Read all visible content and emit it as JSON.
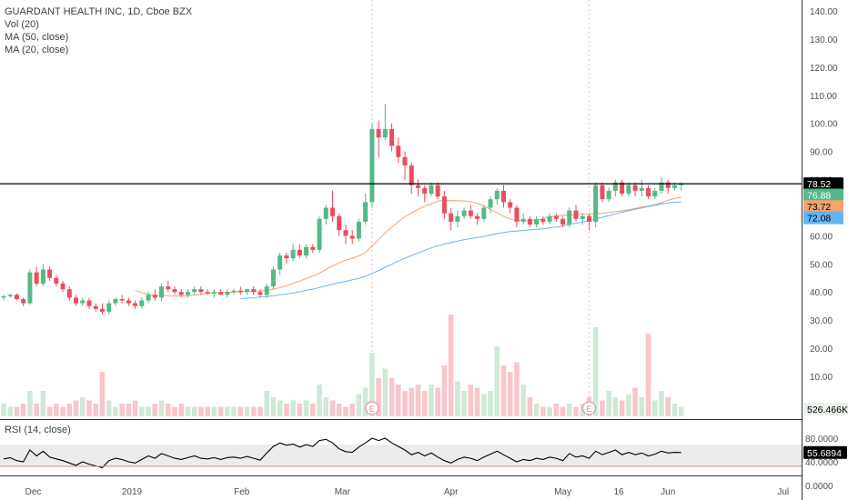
{
  "header": {
    "title": "GUARDANT HEALTH INC, 1D, Cboe BZX",
    "indicators": [
      "Vol (20)",
      "MA (50, close)",
      "MA (20, close)"
    ]
  },
  "rsi_panel": {
    "label": "RSI (14, close)",
    "value_tag": "55.6894",
    "ticks": [
      "80.0000",
      "40.0000",
      "0.0000"
    ]
  },
  "price_tags": {
    "last": "78.52",
    "ma20": "76.88",
    "ma50": "73.72",
    "ma_blue": "72.08",
    "volume": "526.466K"
  },
  "y_ticks": [
    "140.00",
    "130.00",
    "120.00",
    "110.00",
    "100.00",
    "90.00",
    "80.00",
    "70.00",
    "60.00",
    "50.00",
    "40.00",
    "30.00",
    "20.00",
    "10.00"
  ],
  "x_ticks": [
    "Dec",
    "2019",
    "Feb",
    "Mar",
    "Apr",
    "May",
    "16",
    "Jun",
    "Jul"
  ],
  "earnings_marker": "E",
  "colors": {
    "up": "#53b987",
    "down": "#eb4d5c",
    "vol_up": "#cfe9d7",
    "vol_down": "#f8c6cb",
    "ma_orange": "#f5a26f",
    "ma_blue": "#64b5f6",
    "tag_green": "#53b987",
    "tag_orange": "#f5a26f",
    "tag_blue": "#64b5f6"
  },
  "chart_data": {
    "type": "candlestick",
    "title": "GUARDANT HEALTH INC, 1D, Cboe BZX",
    "ylim": [
      5,
      145
    ],
    "horizontal_line": 78.52,
    "candles": [
      [
        38,
        39,
        37,
        38.5
      ],
      [
        38.5,
        39.5,
        38,
        39
      ],
      [
        39,
        39.5,
        37,
        37.5
      ],
      [
        37.5,
        38,
        35,
        36
      ],
      [
        36,
        48,
        35.5,
        47
      ],
      [
        47,
        49,
        42,
        43
      ],
      [
        43,
        50,
        42,
        48
      ],
      [
        48,
        49,
        44,
        45
      ],
      [
        45,
        46,
        42,
        43
      ],
      [
        43,
        44,
        40,
        41
      ],
      [
        41,
        42,
        37,
        38
      ],
      [
        38,
        39,
        35,
        36
      ],
      [
        36,
        38,
        35,
        37
      ],
      [
        37,
        38,
        34,
        35
      ],
      [
        35,
        36,
        33,
        34
      ],
      [
        34,
        36,
        32,
        33
      ],
      [
        33,
        37,
        32,
        36
      ],
      [
        36,
        38,
        35,
        37.5
      ],
      [
        37.5,
        39,
        36,
        37
      ],
      [
        37,
        38,
        35,
        36
      ],
      [
        36,
        37,
        34,
        35
      ],
      [
        35,
        38,
        34,
        37
      ],
      [
        37,
        40,
        36,
        39
      ],
      [
        39,
        41,
        37,
        38
      ],
      [
        38,
        43,
        37,
        42
      ],
      [
        42,
        44,
        40,
        41
      ],
      [
        41,
        42,
        39,
        40
      ],
      [
        40,
        41,
        38,
        39
      ],
      [
        39,
        41,
        38,
        40
      ],
      [
        40,
        42,
        39,
        41
      ],
      [
        41,
        42,
        39,
        40
      ],
      [
        40,
        41,
        39,
        39.5
      ],
      [
        39.5,
        41,
        38,
        40
      ],
      [
        40,
        41,
        39,
        39
      ],
      [
        39,
        41,
        38,
        40
      ],
      [
        40,
        41,
        39,
        40.5
      ],
      [
        40.5,
        42,
        39,
        40
      ],
      [
        40,
        41,
        39,
        41
      ],
      [
        41,
        42,
        39,
        40
      ],
      [
        40,
        41,
        38,
        39
      ],
      [
        39,
        43,
        38,
        42
      ],
      [
        42,
        49,
        41,
        48
      ],
      [
        48,
        54,
        46,
        53
      ],
      [
        53,
        54,
        50,
        52
      ],
      [
        52,
        57,
        51,
        55
      ],
      [
        55,
        57,
        52,
        53
      ],
      [
        53,
        57,
        52,
        56
      ],
      [
        56,
        57,
        54,
        55
      ],
      [
        55,
        67,
        54,
        66
      ],
      [
        66,
        71,
        64,
        70
      ],
      [
        70,
        76,
        65,
        67
      ],
      [
        67,
        68,
        60,
        62
      ],
      [
        62,
        64,
        57,
        60
      ],
      [
        60,
        62,
        57,
        59
      ],
      [
        59,
        66,
        58,
        65
      ],
      [
        65,
        75,
        64,
        72
      ],
      [
        72,
        100,
        70,
        98
      ],
      [
        98,
        101,
        88,
        95
      ],
      [
        95,
        107,
        94,
        98
      ],
      [
        98,
        100,
        90,
        92
      ],
      [
        92,
        95,
        86,
        88
      ],
      [
        88,
        90,
        80,
        85
      ],
      [
        85,
        86,
        75,
        78
      ],
      [
        78,
        80,
        74,
        77
      ],
      [
        77,
        78,
        72,
        75
      ],
      [
        75,
        79,
        74,
        78
      ],
      [
        78,
        79,
        73,
        74
      ],
      [
        74,
        76,
        66,
        68
      ],
      [
        68,
        70,
        62,
        65
      ],
      [
        65,
        69,
        63,
        67
      ],
      [
        67,
        70,
        66,
        69
      ],
      [
        69,
        71,
        66,
        67
      ],
      [
        67,
        68,
        64,
        66
      ],
      [
        66,
        71,
        65,
        70
      ],
      [
        70,
        74,
        68,
        73
      ],
      [
        73,
        77,
        71,
        76
      ],
      [
        76,
        78,
        70,
        72
      ],
      [
        72,
        73,
        68,
        70
      ],
      [
        70,
        71,
        63,
        65
      ],
      [
        65,
        68,
        64,
        66
      ],
      [
        66,
        67,
        63,
        64
      ],
      [
        64,
        67,
        63,
        66
      ],
      [
        66,
        67,
        64,
        65
      ],
      [
        65,
        68,
        64,
        67
      ],
      [
        67,
        68,
        65,
        66
      ],
      [
        66,
        67,
        63,
        64
      ],
      [
        64,
        70,
        63,
        69
      ],
      [
        69,
        71,
        65,
        66
      ],
      [
        66,
        68,
        64,
        67
      ],
      [
        67,
        68,
        62,
        65
      ],
      [
        65,
        79,
        63,
        78
      ],
      [
        78,
        79,
        72,
        73
      ],
      [
        73,
        77,
        72,
        76
      ],
      [
        76,
        80,
        74,
        79
      ],
      [
        79,
        80,
        74,
        75
      ],
      [
        75,
        79,
        74,
        78
      ],
      [
        78,
        79,
        74,
        76
      ],
      [
        76,
        80,
        74,
        77
      ],
      [
        77,
        78,
        73,
        74
      ],
      [
        74,
        77,
        73,
        76
      ],
      [
        76,
        81,
        75,
        79
      ],
      [
        79,
        80,
        75,
        77
      ],
      [
        77,
        79,
        76,
        78
      ],
      [
        78,
        79,
        76,
        78.52
      ]
    ],
    "volume": [
      4,
      3,
      3,
      4,
      8,
      4,
      8,
      3,
      4,
      3,
      4,
      5,
      6,
      5,
      4,
      14,
      5,
      3,
      4,
      4,
      5,
      3,
      3,
      4,
      5,
      4,
      3,
      4,
      3,
      3,
      3,
      3,
      3,
      3,
      3,
      3,
      3,
      3,
      3,
      3,
      8,
      6,
      5,
      4,
      5,
      4,
      5,
      4,
      10,
      6,
      5,
      4,
      3,
      4,
      7,
      9,
      20,
      12,
      15,
      12,
      10,
      8,
      9,
      10,
      8,
      10,
      9,
      16,
      32,
      11,
      8,
      10,
      9,
      7,
      8,
      22,
      16,
      14,
      17,
      10,
      6,
      4,
      3,
      3,
      4,
      3,
      4,
      3,
      4,
      6,
      28,
      5,
      8,
      6,
      5,
      7,
      9,
      6,
      26,
      5,
      8,
      6,
      4,
      3
    ],
    "ma_orange": [
      null,
      null,
      null,
      null,
      null,
      null,
      null,
      null,
      null,
      null,
      null,
      null,
      null,
      null,
      null,
      null,
      null,
      null,
      null,
      null,
      40.5,
      39.8,
      39.2,
      38.9,
      38.8,
      38.7,
      38.6,
      38.6,
      38.7,
      38.9,
      39.2,
      39.5,
      39.7,
      39.8,
      39.9,
      40.0,
      40.1,
      40.2,
      40.3,
      40.4,
      40.6,
      41.0,
      41.6,
      42.3,
      43.1,
      43.9,
      44.8,
      45.6,
      46.7,
      48.0,
      49.3,
      50.4,
      51.3,
      52.0,
      52.9,
      54.0,
      56.4,
      58.6,
      61.0,
      63.0,
      65.0,
      66.8,
      68.2,
      69.4,
      70.5,
      71.4,
      72.3,
      72.6,
      72.5,
      72.5,
      72.4,
      72.1,
      71.5,
      70.6,
      69.4,
      68.2,
      66.9,
      66.0,
      65.5,
      65.3,
      65.2,
      65.5,
      66.1,
      66.7,
      67.1,
      67.3,
      67.5,
      67.6,
      67.7,
      67.6,
      67.9,
      68.0,
      68.3,
      68.6,
      68.9,
      69.3,
      69.7,
      70.2,
      70.6,
      71.1,
      71.8,
      72.6,
      73.3,
      73.72
    ],
    "ma_blue": [
      null,
      null,
      null,
      null,
      null,
      null,
      null,
      null,
      null,
      null,
      null,
      null,
      null,
      null,
      null,
      null,
      null,
      null,
      null,
      null,
      null,
      null,
      null,
      null,
      null,
      null,
      null,
      null,
      null,
      null,
      null,
      null,
      null,
      null,
      null,
      null,
      37.6,
      37.8,
      38.0,
      38.2,
      38.4,
      38.7,
      39.0,
      39.3,
      39.7,
      40.1,
      40.6,
      41.0,
      41.6,
      42.2,
      42.8,
      43.3,
      43.8,
      44.3,
      44.9,
      45.6,
      46.6,
      47.6,
      48.8,
      49.9,
      51.0,
      52.0,
      53.0,
      53.9,
      54.8,
      55.7,
      56.5,
      57.1,
      57.6,
      58.1,
      58.6,
      59.0,
      59.4,
      59.8,
      60.3,
      60.8,
      61.2,
      61.5,
      61.7,
      61.9,
      62.1,
      62.3,
      62.5,
      62.8,
      63.1,
      63.5,
      64.0,
      64.5,
      64.9,
      65.3,
      66.0,
      66.6,
      67.2,
      67.8,
      68.4,
      68.9,
      69.4,
      69.9,
      70.4,
      70.9,
      71.3,
      71.7,
      72.0,
      72.08
    ],
    "rsi": [
      45,
      47,
      42,
      40,
      60,
      50,
      58,
      48,
      45,
      42,
      38,
      34,
      40,
      36,
      33,
      30,
      42,
      46,
      44,
      40,
      38,
      44,
      50,
      46,
      54,
      50,
      46,
      44,
      47,
      50,
      46,
      45,
      47,
      44,
      47,
      48,
      46,
      49,
      46,
      43,
      55,
      66,
      72,
      68,
      70,
      65,
      69,
      66,
      76,
      78,
      72,
      62,
      57,
      56,
      65,
      72,
      80,
      76,
      80,
      72,
      66,
      60,
      52,
      56,
      50,
      55,
      48,
      42,
      38,
      44,
      48,
      46,
      42,
      48,
      53,
      58,
      52,
      46,
      40,
      44,
      42,
      46,
      44,
      48,
      46,
      42,
      54,
      48,
      50,
      46,
      58,
      52,
      56,
      60,
      52,
      56,
      52,
      55,
      50,
      53,
      58,
      55,
      56,
      55.69
    ]
  }
}
